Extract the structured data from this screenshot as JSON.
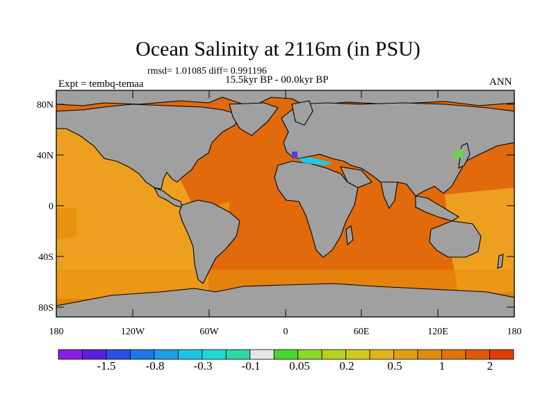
{
  "map": {
    "title": "Ocean Salinity at 2116m (in PSU)",
    "stats": "rmsd= 1.01085 diff= 0.991196",
    "period": "15.5kyr BP - 00.0kyr BP",
    "experiment": "Expt = tembq-temaa",
    "season": "ANN",
    "lat_ticks": [
      "80N",
      "40N",
      "0",
      "40S",
      "80S"
    ],
    "lon_ticks": [
      "180",
      "120W",
      "60W",
      "0",
      "60E",
      "120E",
      "180"
    ],
    "colors": {
      "land": "#a0a0a0",
      "ocean_high": "#e06a0c",
      "ocean_mid": "#e8920f",
      "ocean_light": "#eda020",
      "med_cyan": "#22c8e0",
      "med_blue": "#4444e0",
      "japan_sea": "#66d84a"
    }
  },
  "colorbar": {
    "colors": [
      "#8a1ee0",
      "#5a1ee0",
      "#2a4ee6",
      "#1e78e6",
      "#1e9ee6",
      "#1ec2e6",
      "#1ed8d2",
      "#2ad8a8",
      "#e6e6e6",
      "#46d82a",
      "#8ad82a",
      "#b4d21e",
      "#d2c81e",
      "#e0b41e",
      "#e09e16",
      "#e08a10",
      "#e0720a",
      "#e05a0a",
      "#e03c06"
    ],
    "labels": [
      "-1.5",
      "-0.8",
      "-0.3",
      "-0.1",
      "0.05",
      "0.2",
      "0.5",
      "1",
      "2"
    ]
  }
}
